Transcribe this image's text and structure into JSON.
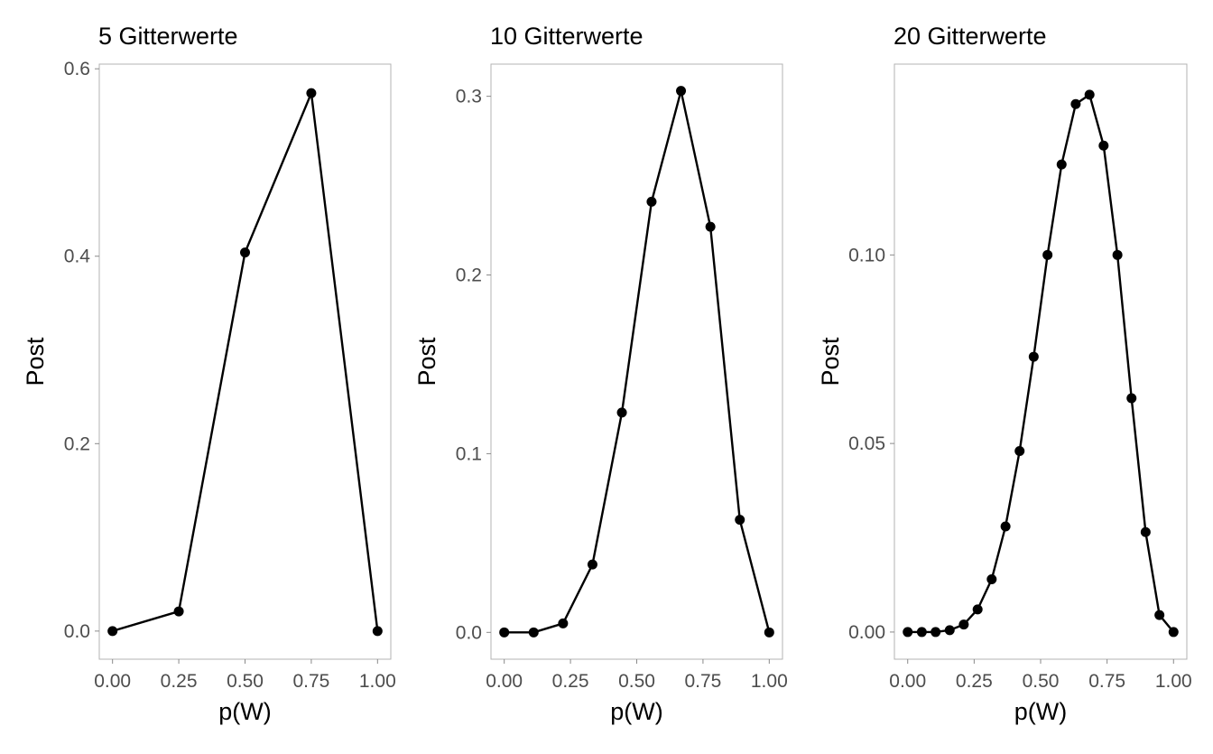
{
  "chart_data": [
    {
      "type": "line",
      "title": "5 Gitterwerte",
      "xlabel": "p(W)",
      "ylabel": "Post",
      "xlim": [
        -0.05,
        1.05
      ],
      "ylim": [
        -0.03,
        0.605
      ],
      "xticks": [
        0,
        0.25,
        0.5,
        0.75,
        1
      ],
      "xtick_labels": [
        "0.00",
        "0.25",
        "0.50",
        "0.75",
        "1.00"
      ],
      "yticks": [
        0,
        0.2,
        0.4,
        0.6
      ],
      "ytick_labels": [
        "0.0",
        "0.2",
        "0.4",
        "0.6"
      ],
      "grid": false,
      "markers": true,
      "x": [
        0,
        0.25,
        0.5,
        0.75,
        1
      ],
      "y": [
        0,
        0.021,
        0.404,
        0.574,
        0
      ]
    },
    {
      "type": "line",
      "title": "10 Gitterwerte",
      "xlabel": "p(W)",
      "ylabel": "Post",
      "xlim": [
        -0.05,
        1.05
      ],
      "ylim": [
        -0.015,
        0.318
      ],
      "xticks": [
        0,
        0.25,
        0.5,
        0.75,
        1
      ],
      "xtick_labels": [
        "0.00",
        "0.25",
        "0.50",
        "0.75",
        "1.00"
      ],
      "yticks": [
        0,
        0.1,
        0.2,
        0.3
      ],
      "ytick_labels": [
        "0.0",
        "0.1",
        "0.2",
        "0.3"
      ],
      "grid": false,
      "markers": true,
      "x": [
        0,
        0.111,
        0.222,
        0.333,
        0.444,
        0.556,
        0.667,
        0.778,
        0.889,
        1
      ],
      "y": [
        0,
        0,
        0.005,
        0.038,
        0.123,
        0.241,
        0.303,
        0.227,
        0.063,
        0
      ]
    },
    {
      "type": "line",
      "title": "20 Gitterwerte",
      "xlabel": "p(W)",
      "ylabel": "Post",
      "xlim": [
        -0.05,
        1.05
      ],
      "ylim": [
        -0.0072,
        0.1506
      ],
      "xticks": [
        0,
        0.25,
        0.5,
        0.75,
        1
      ],
      "xtick_labels": [
        "0.00",
        "0.25",
        "0.50",
        "0.75",
        "1.00"
      ],
      "yticks": [
        0,
        0.05,
        0.1
      ],
      "ytick_labels": [
        "0.00",
        "0.05",
        "0.10"
      ],
      "grid": false,
      "markers": true,
      "x": [
        0,
        0.053,
        0.105,
        0.158,
        0.211,
        0.263,
        0.316,
        0.368,
        0.421,
        0.474,
        0.526,
        0.579,
        0.632,
        0.684,
        0.737,
        0.789,
        0.842,
        0.895,
        0.947,
        1
      ],
      "y": [
        0,
        0,
        0,
        0.0005,
        0.002,
        0.006,
        0.014,
        0.028,
        0.048,
        0.073,
        0.1,
        0.124,
        0.14,
        0.1425,
        0.129,
        0.1,
        0.062,
        0.0265,
        0.0045,
        0
      ]
    }
  ]
}
